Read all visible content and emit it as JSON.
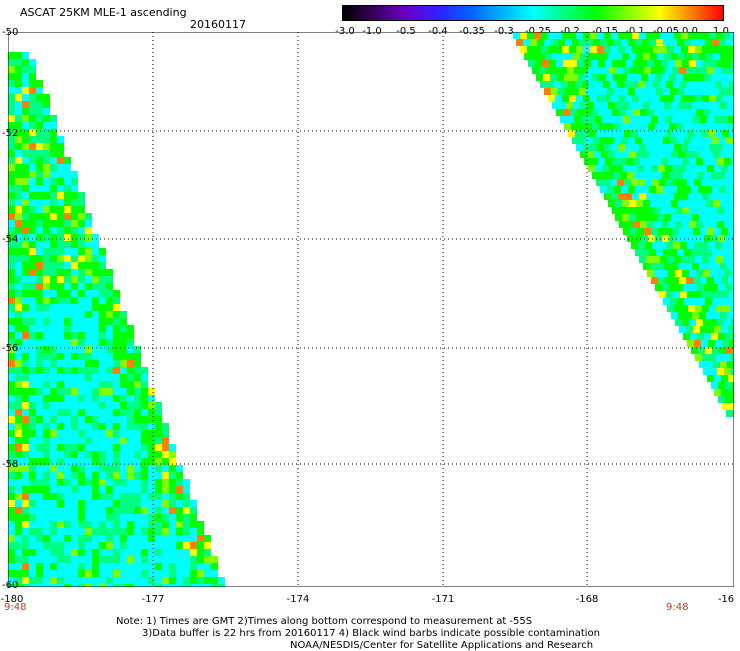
{
  "header": {
    "title": "ASCAT 25KM MLE-1 ascending",
    "date": "20160117"
  },
  "colorbar": {
    "labels": [
      "-3.0",
      "-1.0",
      "-0.5",
      "-0.4",
      "-0.35",
      "-0.3",
      "-0.25",
      "-0.2",
      "-0.15",
      "-0.1",
      "-0.05",
      "0.0",
      "1.0"
    ],
    "colors": [
      "#000000",
      "#3a0060",
      "#6a00c8",
      "#3020ff",
      "#0060ff",
      "#00b0ff",
      "#00ffff",
      "#00ff80",
      "#00ff00",
      "#80ff00",
      "#ffff00",
      "#ff8000",
      "#ff0000"
    ]
  },
  "map": {
    "lat_labels": [
      "-50",
      "-52",
      "-54",
      "-56",
      "-58",
      "-60"
    ],
    "lon_labels": [
      "-180",
      "-177",
      "-174",
      "-171",
      "-168",
      "-16"
    ],
    "time_labels": [
      "9:48",
      "9:48"
    ],
    "grid": true,
    "swath_colors": [
      "#00ffff",
      "#00ff80",
      "#00ff00",
      "#80ff00",
      "#ffff00",
      "#ff8000",
      "#00a0ff"
    ]
  },
  "notes": {
    "line1": "Note: 1) Times are GMT 2)Times along bottom correspond to measurement at -55S",
    "line2": "3)Data buffer is 22 hrs from 20160117 4) Black wind barbs indicate possible contamination",
    "line3": "NOAA/NESDIS/Center for Satellite Applications and Research"
  }
}
